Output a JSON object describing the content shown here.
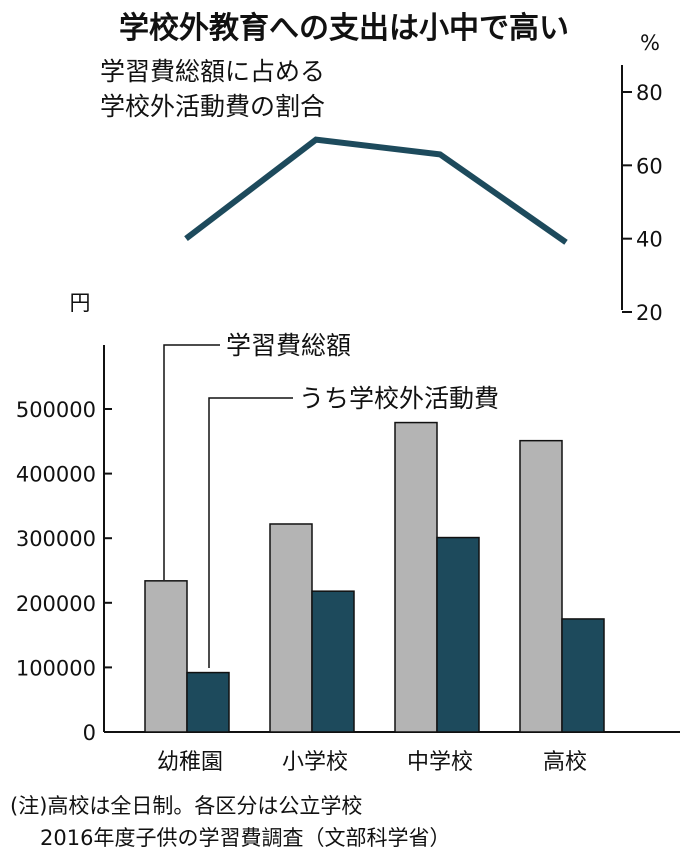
{
  "title": "学校外教育への支出は小中で高い",
  "chart_data": [
    {
      "type": "line",
      "annotation_lines": [
        "学習費総額に占める",
        "学校外活動費の割合"
      ],
      "categories": [
        "幼稚園",
        "小学校",
        "中学校",
        "高校"
      ],
      "series": [
        {
          "name": "学校外活動費の割合",
          "values": [
            40,
            67,
            63,
            39
          ],
          "color": "#1d4a5c"
        }
      ],
      "yunit": "%",
      "ylim": [
        20,
        80
      ],
      "yticks": [
        "20",
        "40",
        "60",
        "80"
      ],
      "axis_position": "right"
    },
    {
      "type": "bar",
      "yunit": "円",
      "categories": [
        "幼稚園",
        "小学校",
        "中学校",
        "高校"
      ],
      "series": [
        {
          "name": "学習費総額",
          "values": [
            234000,
            322000,
            479000,
            451000
          ],
          "color": "#b4b4b4"
        },
        {
          "name": "うち学校外活動費",
          "values": [
            92000,
            218000,
            301000,
            175000
          ],
          "color": "#1d4a5c"
        }
      ],
      "ylim": [
        0,
        500000
      ],
      "yticks": [
        "0",
        "100000",
        "200000",
        "300000",
        "400000",
        "500000"
      ],
      "legend": "callout labels above first category"
    }
  ],
  "notes": [
    "(注)高校は全日制。各区分は公立学校",
    "2016年度子供の学習費調査（文部科学省）"
  ]
}
